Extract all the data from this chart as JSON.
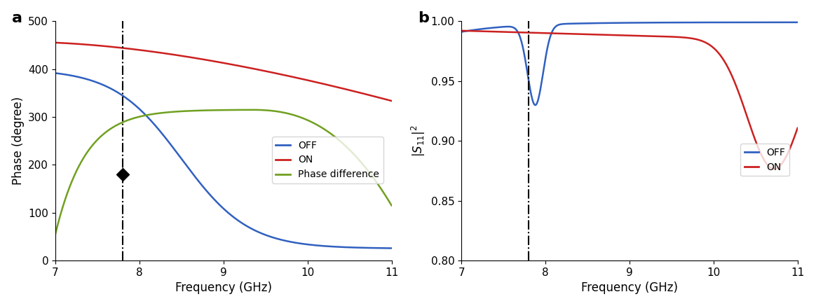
{
  "vline_x": 7.8,
  "diamond_x": 7.8,
  "diamond_y": 180,
  "panel_a": {
    "xlabel": "Frequency (GHz)",
    "ylabel": "Phase (degree)",
    "xlim": [
      7,
      11
    ],
    "ylim": [
      0,
      500
    ],
    "yticks": [
      0,
      100,
      200,
      300,
      400,
      500
    ],
    "xticks": [
      7,
      8,
      9,
      10,
      11
    ],
    "off_color": "#3060c0",
    "on_color": "#cc2020",
    "diff_color": "#70a020",
    "legend_labels": [
      "OFF",
      "ON",
      "Phase difference"
    ]
  },
  "panel_b": {
    "xlabel": "Frequency (GHz)",
    "ylabel": "|S_{11}|^2",
    "xlim": [
      7,
      11
    ],
    "ylim": [
      0.8,
      1.0
    ],
    "yticks": [
      0.8,
      0.85,
      0.9,
      0.95,
      1.0
    ],
    "xticks": [
      7,
      8,
      9,
      10,
      11
    ],
    "off_color": "#3060c0",
    "on_color": "#cc2020",
    "legend_labels": [
      "OFF",
      "ON"
    ]
  }
}
